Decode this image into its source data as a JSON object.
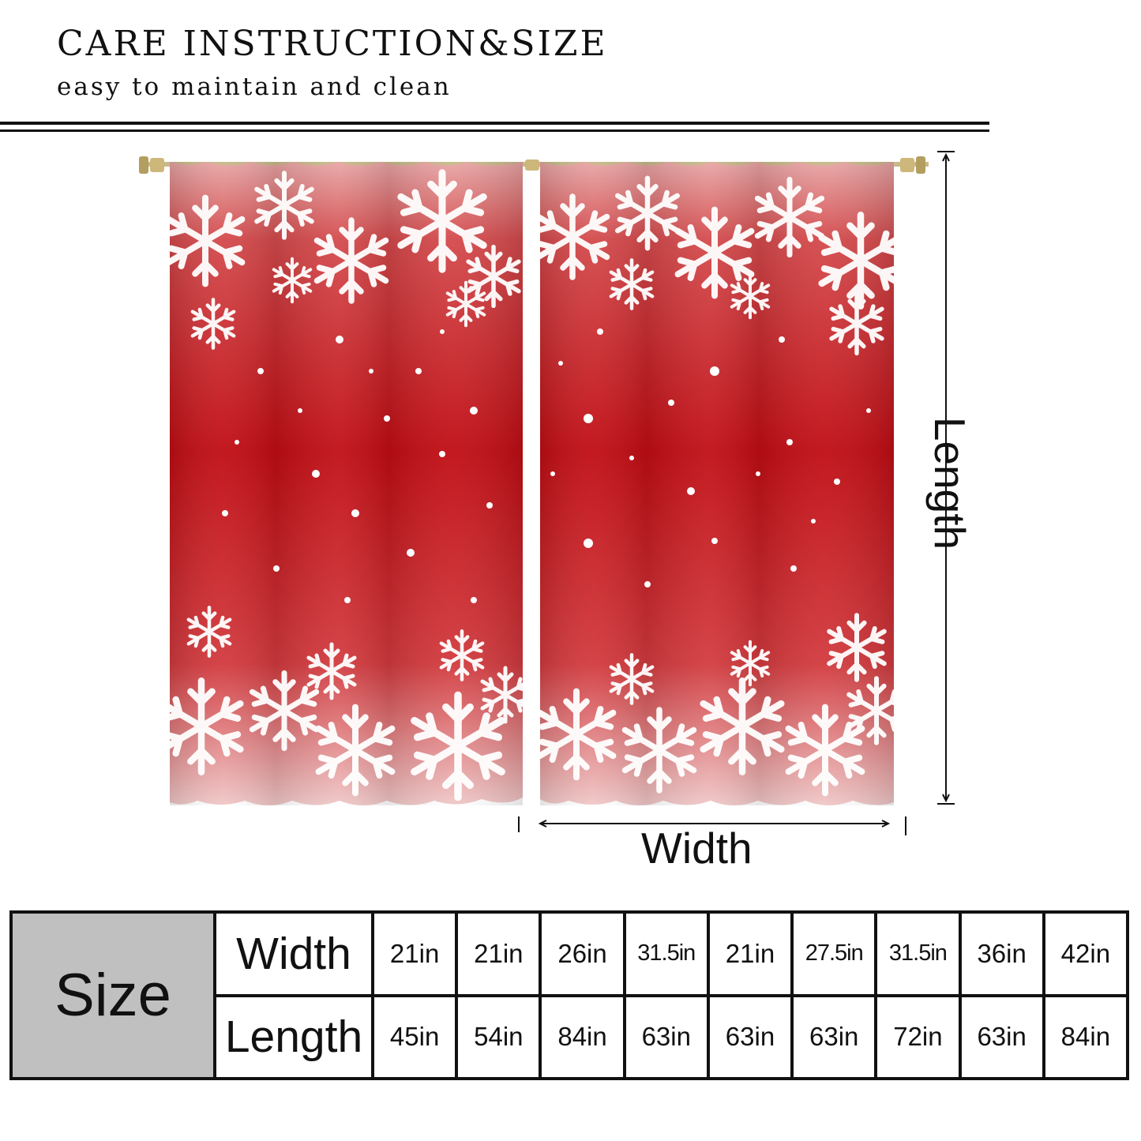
{
  "header": {
    "title": "CARE INSTRUCTION&SIZE",
    "subtitle": "easy to maintain and clean"
  },
  "diagram": {
    "width_label": "Width",
    "length_label": "Length",
    "colors": {
      "curtain_red": "#c41418",
      "snow": "#ffffff",
      "rod": "#c8b98a"
    }
  },
  "size_table": {
    "size_label": "Size",
    "width_label": "Width",
    "length_label": "Length",
    "widths": [
      "21in",
      "21in",
      "26in",
      "31.5in",
      "21in",
      "27.5in",
      "31.5in",
      "36in",
      "42in"
    ],
    "lengths": [
      "45in",
      "54in",
      "84in",
      "63in",
      "63in",
      "63in",
      "72in",
      "63in",
      "84in"
    ]
  }
}
